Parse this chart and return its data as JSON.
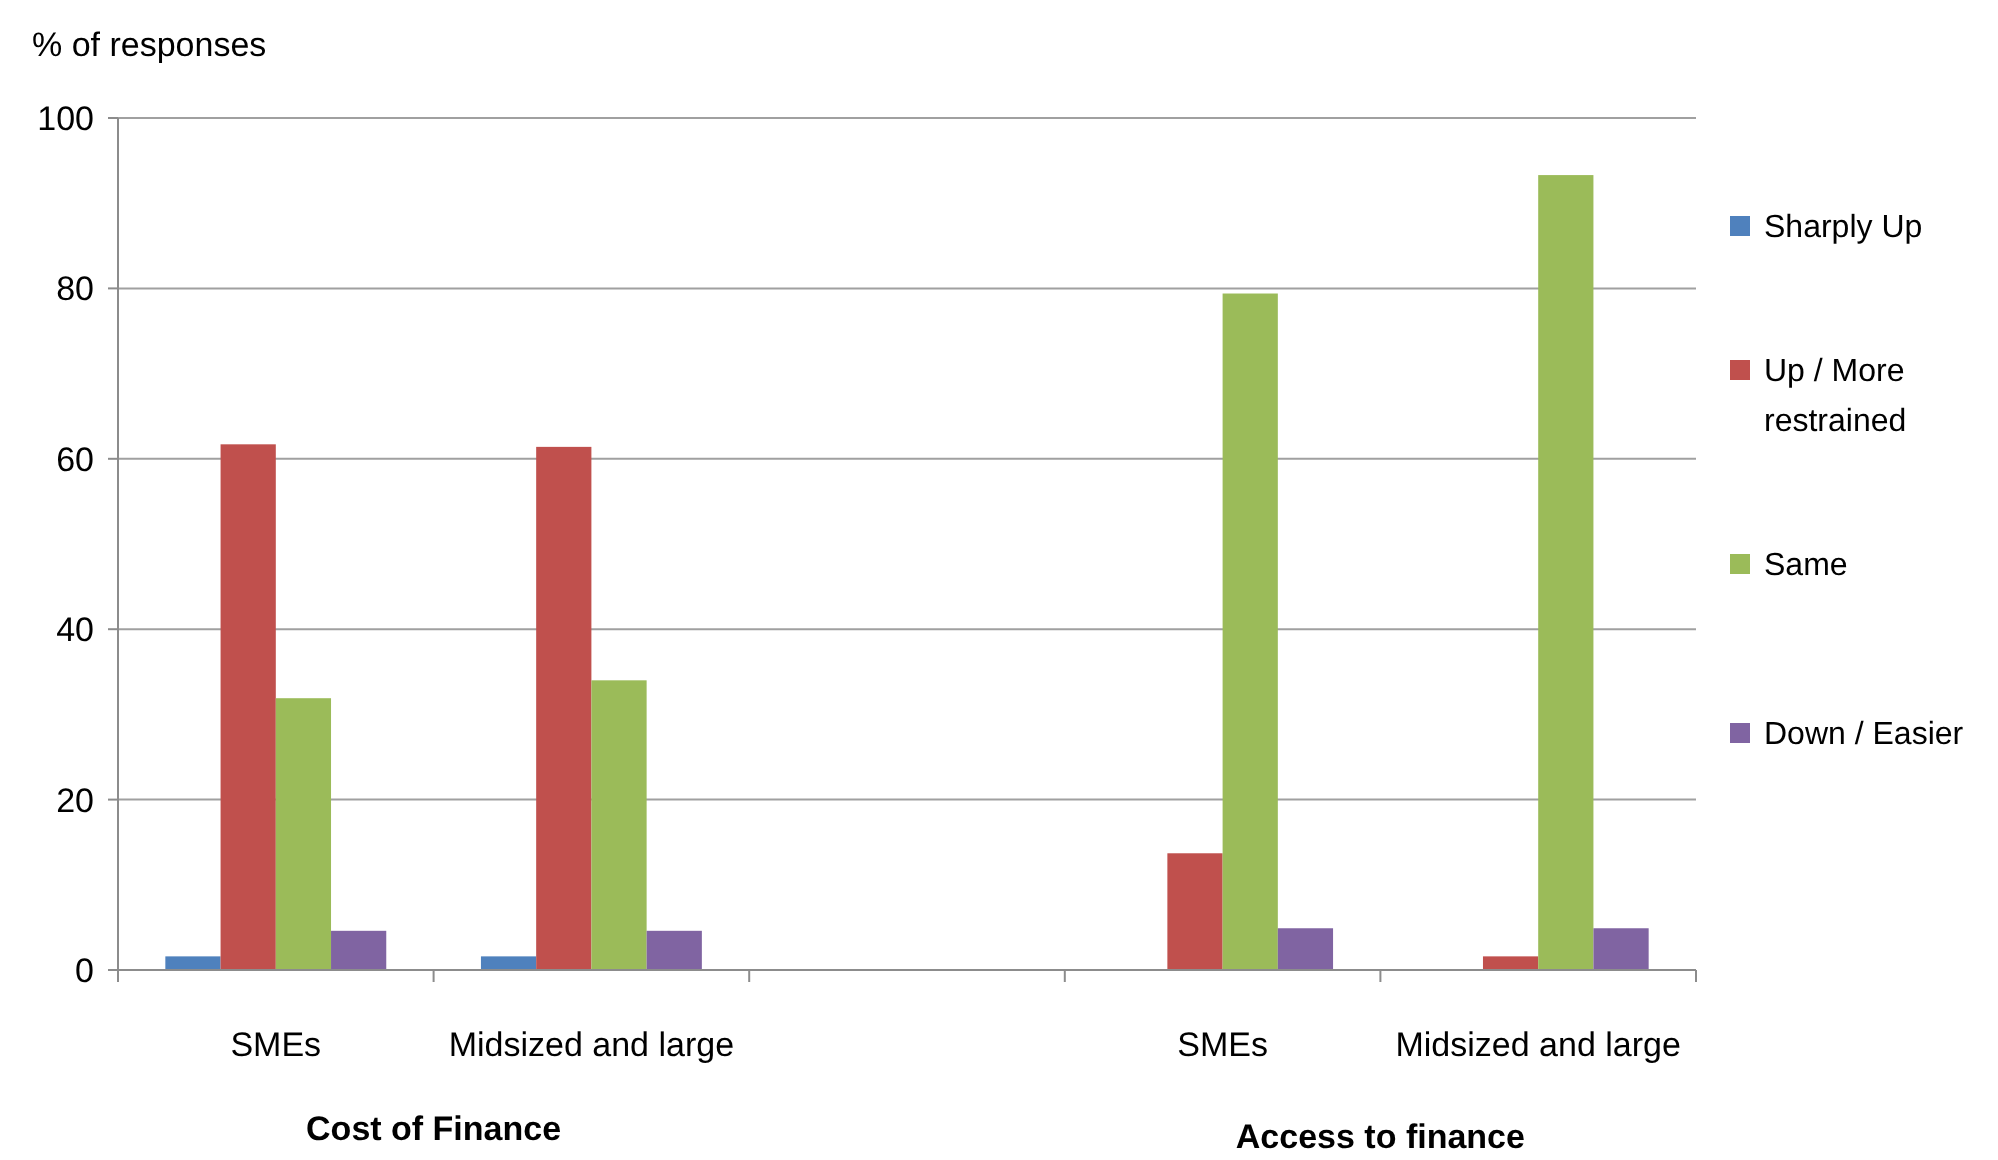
{
  "chart_data": {
    "type": "bar",
    "ylabel": "% of responses",
    "categories": [
      "SMEs",
      "Midsized and large",
      null,
      "SMEs",
      "Midsized and large"
    ],
    "series": [
      {
        "name": "Sharply Up",
        "color": "#4f81bd",
        "values": [
          1.6,
          1.6,
          null,
          0,
          0
        ]
      },
      {
        "name": "Up / More restrained",
        "color": "#c0504d",
        "values": [
          61.7,
          61.4,
          null,
          13.7,
          1.6
        ]
      },
      {
        "name": "Same",
        "color": "#9bbb59",
        "values": [
          31.9,
          34.0,
          null,
          79.4,
          93.3
        ]
      },
      {
        "name": "Down / Easier",
        "color": "#8064a2",
        "values": [
          4.6,
          4.6,
          null,
          4.9,
          4.9
        ]
      }
    ],
    "ylim": [
      0,
      100
    ],
    "yticks": [
      0,
      20,
      40,
      60,
      80,
      100
    ],
    "grid": "y",
    "legend": "right",
    "annotations": [
      "Cost of Finance",
      "Access to finance"
    ]
  }
}
